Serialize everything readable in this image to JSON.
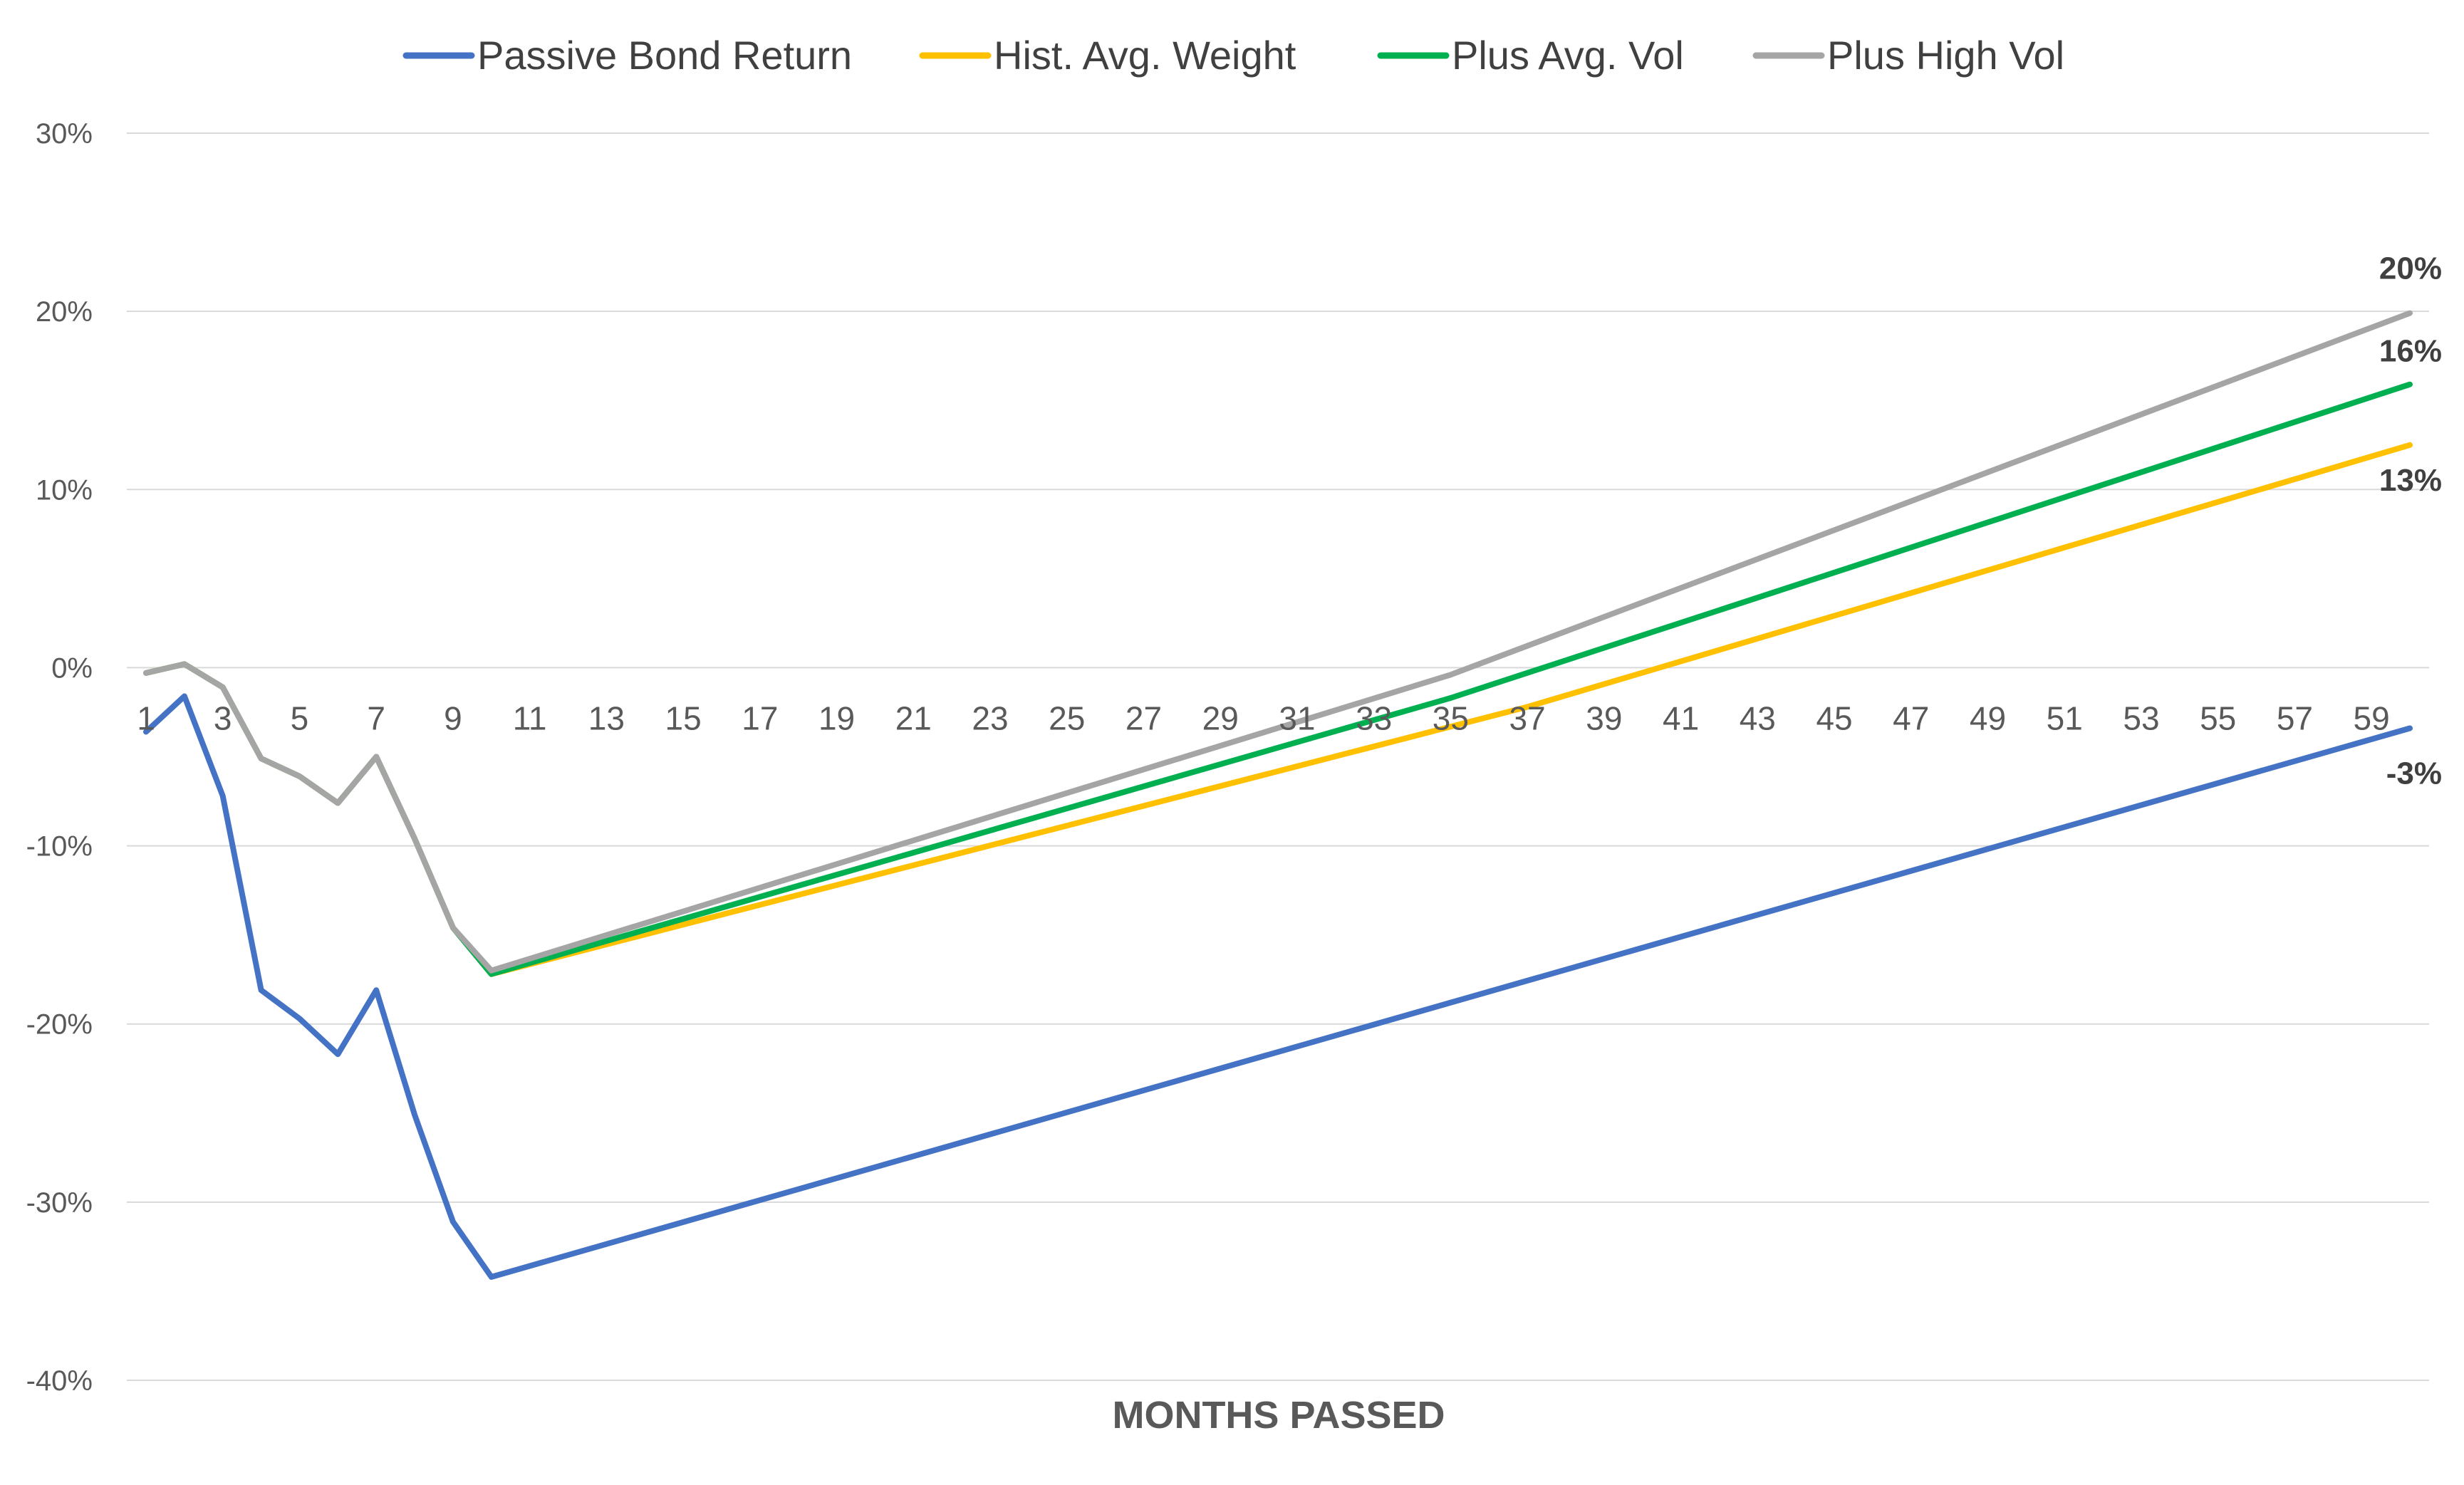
{
  "chart_data": {
    "type": "line",
    "title": "",
    "xlabel": "MONTHS PASSED",
    "ylabel": "",
    "xlim": [
      1,
      60
    ],
    "ylim": [
      -40,
      30
    ],
    "y_ticks": [
      -40,
      -30,
      -20,
      -10,
      0,
      10,
      20,
      30
    ],
    "y_tick_labels": [
      "-40%",
      "-30%",
      "-20%",
      "-10%",
      "0%",
      "10%",
      "20%",
      "30%"
    ],
    "x_tick_labels": [
      "1",
      "3",
      "5",
      "7",
      "9",
      "11",
      "13",
      "15",
      "17",
      "19",
      "21",
      "23",
      "25",
      "27",
      "29",
      "31",
      "33",
      "35",
      "37",
      "39",
      "41",
      "43",
      "45",
      "47",
      "49",
      "51",
      "53",
      "55",
      "57",
      "59"
    ],
    "grid": true,
    "legend_position": "top",
    "series": [
      {
        "name": "Passive Bond Return",
        "color": "#4472c4",
        "points": [
          [
            1,
            -3.6
          ],
          [
            2,
            -1.6
          ],
          [
            3,
            -7.2
          ],
          [
            4,
            -18.1
          ],
          [
            5,
            -19.7
          ],
          [
            6,
            -21.7
          ],
          [
            7,
            -18.1
          ],
          [
            8,
            -25.1
          ],
          [
            9,
            -31.1
          ],
          [
            10,
            -34.2
          ],
          [
            60,
            -3.4
          ]
        ],
        "end_label": "-3%"
      },
      {
        "name": "Hist. Avg. Weight",
        "color": "#ffc000",
        "points": [
          [
            1,
            -0.3
          ],
          [
            2,
            0.2
          ],
          [
            3,
            -1.1
          ],
          [
            4,
            -5.1
          ],
          [
            5,
            -6.1
          ],
          [
            6,
            -7.6
          ],
          [
            7,
            -5.0
          ],
          [
            8,
            -9.6
          ],
          [
            9,
            -14.6
          ],
          [
            10,
            -17.2
          ],
          [
            37,
            -2.2
          ],
          [
            60,
            12.5
          ]
        ],
        "end_label": "13%"
      },
      {
        "name": "Plus Avg. Vol",
        "color": "#00b050",
        "points": [
          [
            1,
            -0.3
          ],
          [
            2,
            0.2
          ],
          [
            3,
            -1.1
          ],
          [
            4,
            -5.1
          ],
          [
            5,
            -6.1
          ],
          [
            6,
            -7.6
          ],
          [
            7,
            -5.0
          ],
          [
            8,
            -9.6
          ],
          [
            9,
            -14.6
          ],
          [
            10,
            -17.2
          ],
          [
            35,
            -1.7
          ],
          [
            60,
            15.9
          ]
        ],
        "end_label": "16%"
      },
      {
        "name": "Plus High Vol",
        "color": "#a5a5a5",
        "points": [
          [
            1,
            -0.3
          ],
          [
            2,
            0.2
          ],
          [
            3,
            -1.1
          ],
          [
            4,
            -5.1
          ],
          [
            5,
            -6.1
          ],
          [
            6,
            -7.6
          ],
          [
            7,
            -5.0
          ],
          [
            8,
            -9.6
          ],
          [
            9,
            -14.6
          ],
          [
            10,
            -17.0
          ],
          [
            35,
            -0.4
          ],
          [
            60,
            19.9
          ]
        ],
        "end_label": "20%"
      }
    ]
  }
}
